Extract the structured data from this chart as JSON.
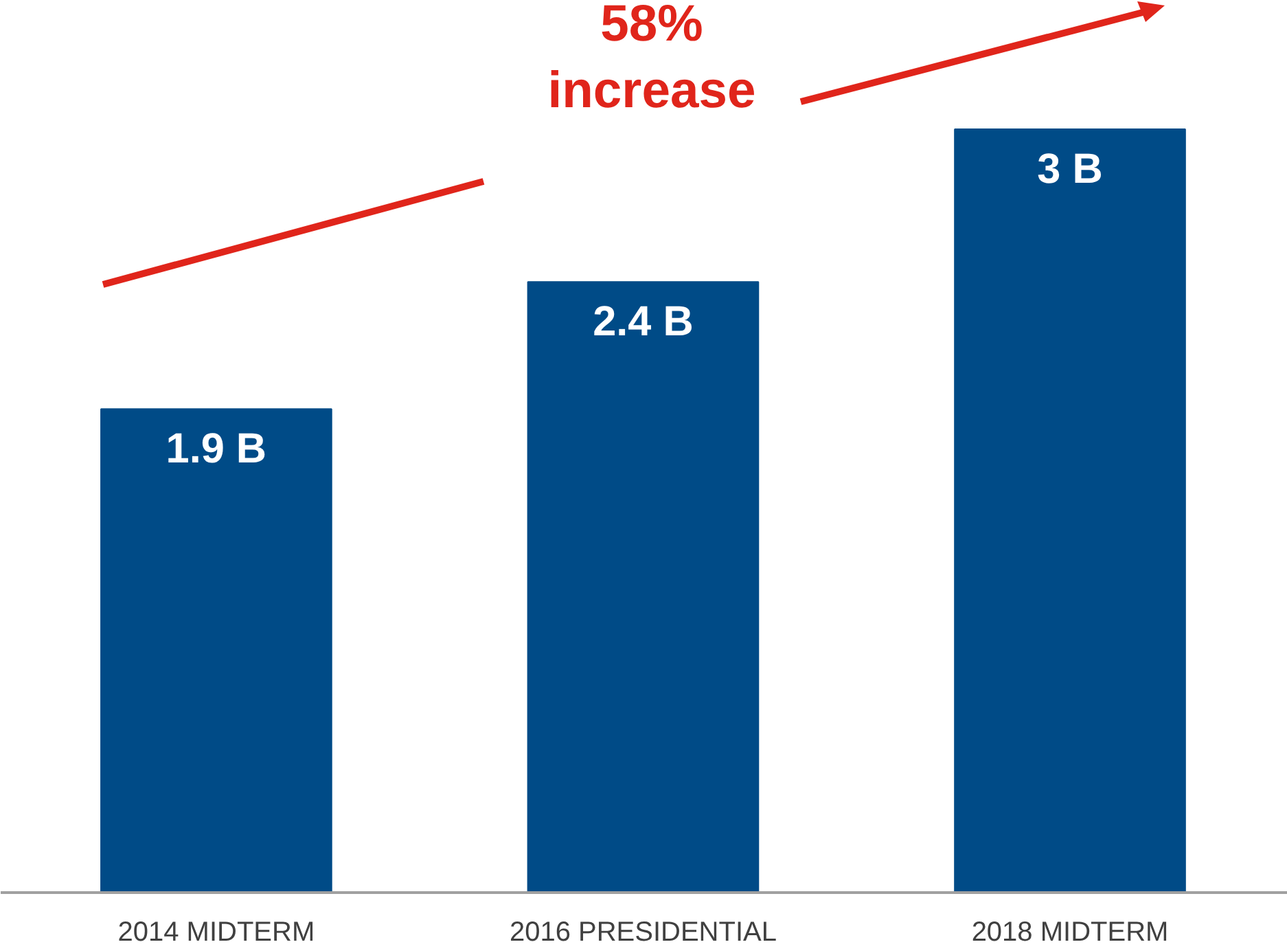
{
  "chart_data": {
    "type": "bar",
    "categories": [
      "2014 MIDTERM",
      "2016 PRESIDENTIAL",
      "2018 MIDTERM"
    ],
    "values": [
      1.9,
      2.4,
      3
    ],
    "color": "#004b87",
    "value_labels": [
      "1.9 B",
      "2.4 B",
      "3 B"
    ],
    "tick_labels": "x",
    "grid": false,
    "annotations": [
      "58%\nincrease"
    ]
  }
}
